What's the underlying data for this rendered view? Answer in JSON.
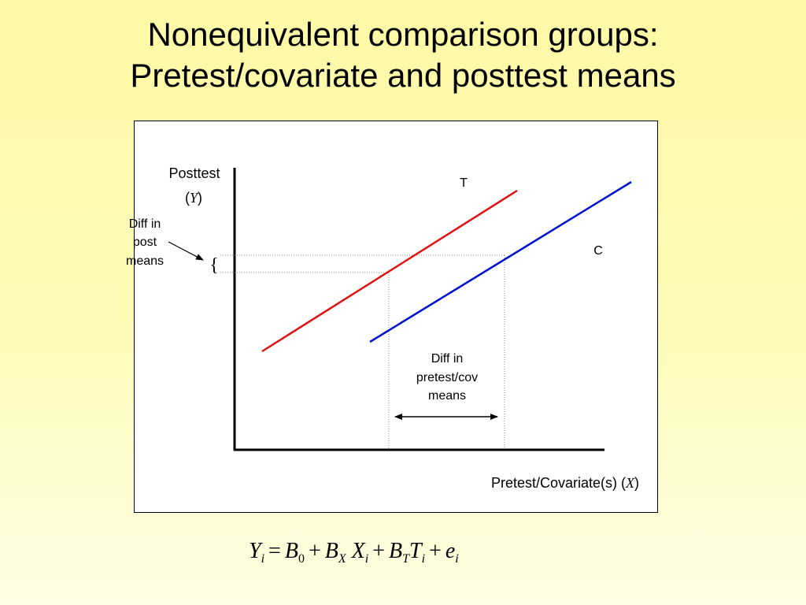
{
  "title": {
    "line1": "Nonequivalent comparison groups:",
    "line2": "Pretest/covariate and posttest means"
  },
  "diagram": {
    "y_axis_label": "Posttest",
    "y_axis_symbol": "Y",
    "x_axis_label": "Pretest/Covariate(s)",
    "x_axis_symbol": "X",
    "treatment_label": "T",
    "control_label": "C",
    "diff_post_label": [
      "Diff in",
      "post",
      "means"
    ],
    "diff_pre_label": [
      "Diff in",
      "pretest/cov",
      "means"
    ],
    "brace_glyph": "{",
    "treatment_color": "#e01010",
    "control_color": "#0010d0"
  },
  "formula": {
    "Y": "Y",
    "sub_i": "i",
    "eq": "=",
    "B0": "B",
    "sub_0": "0",
    "plus": "+",
    "BX": "B",
    "sub_X": "X",
    "X": "X",
    "BT": "B",
    "sub_T": "T",
    "T": "T",
    "e": "e"
  }
}
